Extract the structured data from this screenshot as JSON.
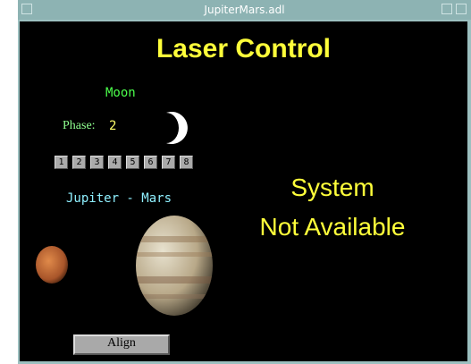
{
  "window": {
    "title": "JupiterMars.adl"
  },
  "header": {
    "title": "Laser Control"
  },
  "moon": {
    "label": "Moon",
    "phase_label": "Phase:",
    "phase_value": 2,
    "buttons": [
      "1",
      "2",
      "3",
      "4",
      "5",
      "6",
      "7",
      "8"
    ]
  },
  "planets": {
    "label": "Jupiter - Mars"
  },
  "status": {
    "lines": [
      "System",
      "Not Available"
    ]
  },
  "align_button": {
    "label": "Align"
  }
}
